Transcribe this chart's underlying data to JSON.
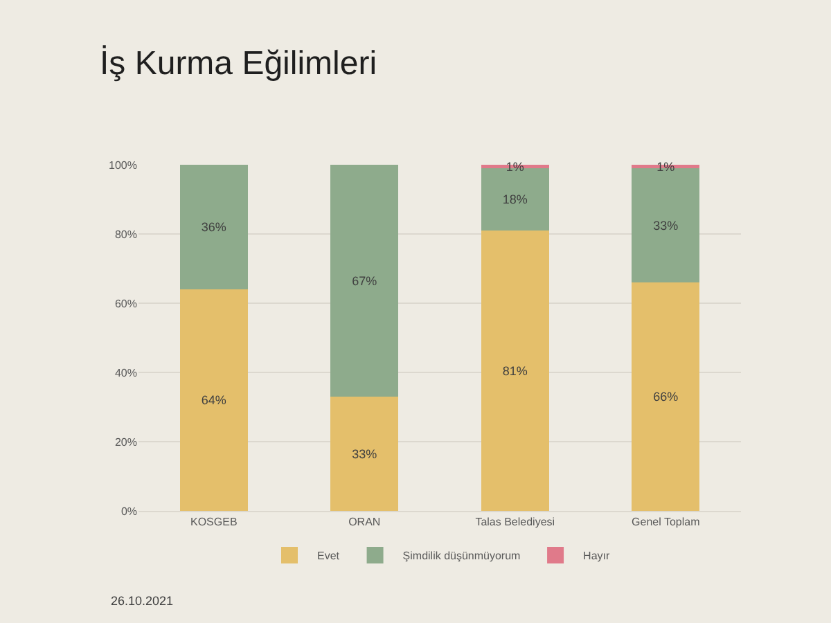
{
  "chart_data": {
    "type": "bar",
    "stacked": true,
    "title": "İş Kurma Eğilimleri",
    "categories": [
      "KOSGEB",
      "ORAN",
      "Talas Belediyesi",
      "Genel Toplam"
    ],
    "series": [
      {
        "name": "Evet",
        "color": "#e4bf6b",
        "values": [
          64,
          33,
          81,
          66
        ],
        "value_labels": [
          "64%",
          "33%",
          "81%",
          "66%"
        ]
      },
      {
        "name": "Şimdilik düşünmüyorum",
        "color": "#8eab8c",
        "values": [
          36,
          67,
          18,
          33
        ],
        "value_labels": [
          "36%",
          "67%",
          "18%",
          "33%"
        ]
      },
      {
        "name": "Hayır",
        "color": "#e07a8a",
        "values": [
          0,
          0,
          1,
          1
        ],
        "value_labels": [
          null,
          null,
          "1%",
          "1%"
        ]
      }
    ],
    "ylim": [
      0,
      100
    ],
    "yticks": [
      {
        "value": 0,
        "label": "0%"
      },
      {
        "value": 20,
        "label": "20%"
      },
      {
        "value": 40,
        "label": "40%"
      },
      {
        "value": 60,
        "label": "60%"
      },
      {
        "value": 80,
        "label": "80%"
      },
      {
        "value": 100,
        "label": "100%"
      }
    ],
    "grid": "y",
    "legend": "bottom",
    "annotations": [
      "26.10.2021"
    ]
  }
}
